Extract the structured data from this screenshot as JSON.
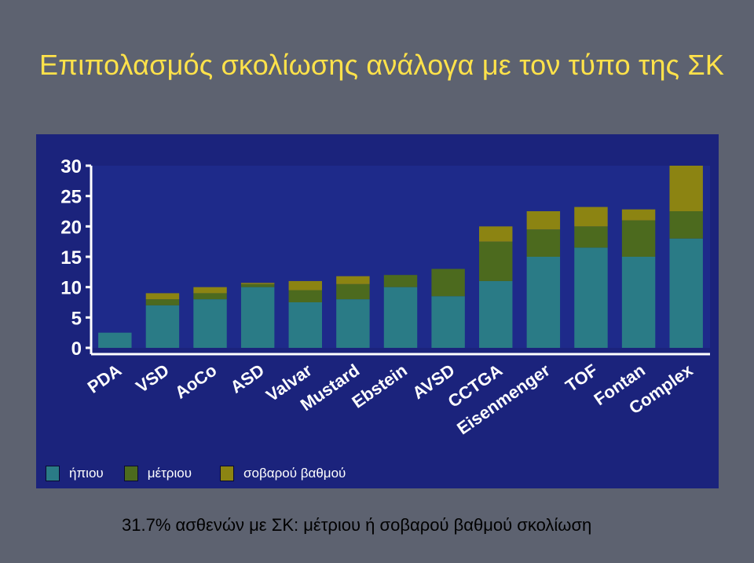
{
  "slide": {
    "title": "Επιπολασμός σκολίωσης ανάλογα με τον τύπο της ΣΚ",
    "footer": "31.7% ασθενών με ΣΚ: μέτριου ή σοβαρού βαθμού σκολίωση"
  },
  "legend": [
    {
      "label": "ήπιου",
      "color": "#2a7b86"
    },
    {
      "label": "μέτριου",
      "color": "#4c6a1e"
    },
    {
      "label": "σοβαρού βαθμού",
      "color": "#8c8412"
    }
  ],
  "chart_data": {
    "type": "bar",
    "stacked": true,
    "categories": [
      "PDA",
      "VSD",
      "AoCo",
      "ASD",
      "Valvar",
      "Mustard",
      "Ebstein",
      "AVSD",
      "CCTGA",
      "Eisenmenger",
      "TOF",
      "Fontan",
      "Complex"
    ],
    "series": [
      {
        "name": "ήπιου",
        "values": [
          2.5,
          7,
          8,
          10,
          7.5,
          8,
          10,
          8.5,
          11,
          15,
          16.5,
          15,
          18
        ]
      },
      {
        "name": "μέτριου",
        "values": [
          0,
          1,
          1,
          0.5,
          2,
          2.5,
          2,
          4.5,
          6.5,
          4.5,
          3.5,
          6,
          4.5
        ]
      },
      {
        "name": "σοβαρού βαθμού",
        "values": [
          0,
          1,
          1,
          0.2,
          1.5,
          1.3,
          0,
          0,
          2.5,
          3,
          3.2,
          1.8,
          7.5
        ]
      }
    ],
    "yticks": [
      0,
      5,
      10,
      15,
      20,
      25,
      30
    ],
    "ylim": [
      0,
      30
    ],
    "grid": false,
    "legend_position": "bottom-left"
  }
}
